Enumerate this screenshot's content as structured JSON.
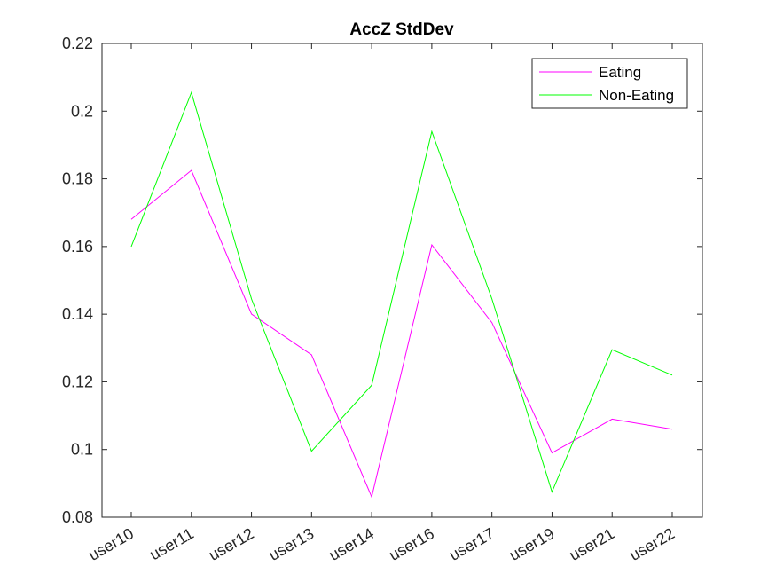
{
  "chart_data": {
    "type": "line",
    "title": "AccZ StdDev",
    "xlabel": "",
    "ylabel": "",
    "categories": [
      "user10",
      "user11",
      "user12",
      "user13",
      "user14",
      "user16",
      "user17",
      "user19",
      "user21",
      "user22"
    ],
    "ylim": [
      0.08,
      0.22
    ],
    "yticks": [
      0.08,
      0.1,
      0.12,
      0.14,
      0.16,
      0.18,
      0.2,
      0.22
    ],
    "ytick_labels": [
      "0.08",
      "0.1",
      "0.12",
      "0.14",
      "0.16",
      "0.18",
      "0.2",
      "0.22"
    ],
    "grid": false,
    "legend_position": "top-right",
    "series": [
      {
        "name": "Eating",
        "color": "#ff00ff",
        "values": [
          0.168,
          0.1825,
          0.14,
          0.128,
          0.086,
          0.1605,
          0.1375,
          0.099,
          0.109,
          0.106
        ]
      },
      {
        "name": "Non-Eating",
        "color": "#00ff00",
        "values": [
          0.16,
          0.2055,
          0.1445,
          0.0995,
          0.119,
          0.194,
          0.1445,
          0.0875,
          0.1295,
          0.122
        ]
      }
    ]
  }
}
